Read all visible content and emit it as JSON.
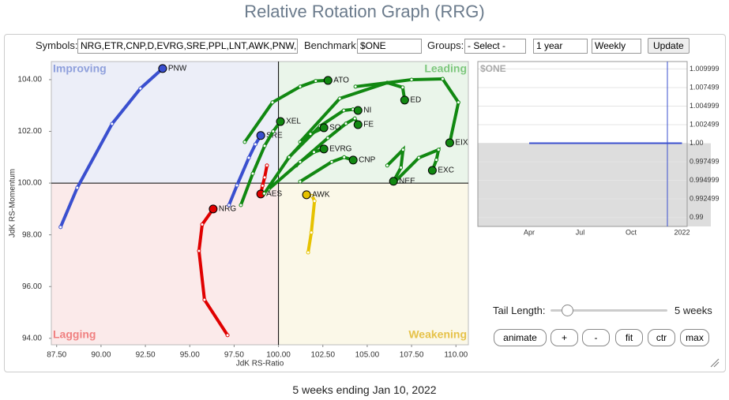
{
  "header": {
    "title": "Relative Rotation Graph (RRG)"
  },
  "controls": {
    "symbols_label": "Symbols:",
    "symbols": "NRG,ETR,CNP,D,EVRG,SRE,PPL,LNT,AWK,PNW,",
    "benchmark_label": "Benchmark:",
    "benchmark": "$ONE",
    "groups_label": "Groups:",
    "groups": "- Select -",
    "period": "1 year",
    "frequency": "Weekly",
    "update": "Update",
    "tail_label": "Tail Length:",
    "tail_value": "5 weeks",
    "buttons": [
      "animate",
      "+",
      "-",
      "fit",
      "ctr",
      "max"
    ]
  },
  "chart_data": [
    {
      "type": "rrg",
      "x_label": "JdK RS-Ratio",
      "y_label": "JdK RS-Momentum",
      "quadrants": {
        "improving": "Improving",
        "leading": "Leading",
        "lagging": "Lagging",
        "weakening": "Weakening"
      },
      "center": [
        100,
        100
      ],
      "xlim": [
        87.2,
        110.7
      ],
      "ylim": [
        93.75,
        104.7
      ],
      "xticks": [
        {
          "value": 87.5,
          "label": "87.50"
        },
        {
          "value": 90,
          "label": "90.00"
        },
        {
          "value": 92.5,
          "label": "92.50"
        },
        {
          "value": 95,
          "label": "95.00"
        },
        {
          "value": 97.5,
          "label": "97.50"
        },
        {
          "value": 100,
          "label": "100.00"
        },
        {
          "value": 102.5,
          "label": "102.50"
        },
        {
          "value": 105,
          "label": "105.00"
        },
        {
          "value": 107.5,
          "label": "107.50"
        },
        {
          "value": 110,
          "label": "110.00"
        }
      ],
      "yticks": [
        {
          "value": 94,
          "label": "94.00"
        },
        {
          "value": 96,
          "label": "96.00"
        },
        {
          "value": 98,
          "label": "98.00"
        },
        {
          "value": 100,
          "label": "100.00"
        },
        {
          "value": 102,
          "label": "102.00"
        },
        {
          "value": 104,
          "label": "104.00"
        }
      ],
      "series": [
        {
          "name": "PNW",
          "color": "#3a4fcf",
          "x": [
            87.72,
            88.66,
            90.62,
            92.22,
            93.47
          ],
          "values": [
            98.3,
            99.82,
            102.29,
            103.66,
            104.43
          ]
        },
        {
          "name": "NRG",
          "color": "#e00000",
          "x": [
            97.13,
            95.83,
            95.52,
            95.7,
            96.32
          ],
          "values": [
            94.12,
            95.49,
            97.38,
            98.4,
            99.0
          ]
        },
        {
          "name": "AWK",
          "color": "#e6c200",
          "x": [
            101.67,
            101.85,
            102.03,
            101.9,
            101.58
          ],
          "values": [
            97.32,
            98.09,
            99.31,
            99.5,
            99.55
          ]
        },
        {
          "name": "AES",
          "color": "#e00000",
          "x": [
            99.35,
            99.22,
            99.1,
            99.0
          ],
          "values": [
            100.68,
            100.22,
            99.9,
            99.58
          ]
        },
        {
          "name": "SRE",
          "color": "#3a4fcf",
          "x": [
            97.21,
            97.66,
            98.33,
            98.7,
            99.0
          ],
          "values": [
            99.15,
            99.91,
            100.98,
            101.5,
            101.84
          ]
        },
        {
          "name": "XEL",
          "color": "#118811",
          "x": [
            97.88,
            98.55,
            99.22,
            99.7,
            100.11
          ],
          "values": [
            99.15,
            100.37,
            101.44,
            102.0,
            102.38
          ]
        },
        {
          "name": "ATO",
          "color": "#118811",
          "x": [
            98.1,
            99.66,
            101.22,
            102.1,
            102.79
          ],
          "values": [
            101.59,
            103.12,
            103.73,
            103.95,
            103.97
          ]
        },
        {
          "name": "ED",
          "color": "#118811",
          "x": [
            101.22,
            103.45,
            106.13,
            107.0,
            107.11
          ],
          "values": [
            101.59,
            103.27,
            103.88,
            103.7,
            103.21
          ]
        },
        {
          "name": "NI",
          "color": "#118811",
          "x": [
            100.56,
            102.34,
            103.68,
            104.2,
            104.48
          ],
          "values": [
            100.98,
            102.2,
            102.81,
            102.85,
            102.81
          ]
        },
        {
          "name": "FE",
          "color": "#118811",
          "x": [
            101.0,
            102.78,
            103.8,
            104.3,
            104.48
          ],
          "values": [
            100.68,
            101.74,
            102.3,
            102.5,
            102.26
          ]
        },
        {
          "name": "EIX",
          "color": "#118811",
          "x": [
            104.34,
            107.5,
            109.25,
            110.14,
            109.65
          ],
          "values": [
            103.73,
            104.0,
            104.03,
            103.12,
            101.56
          ]
        },
        {
          "name": "EXC",
          "color": "#118811",
          "x": [
            106.57,
            107.91,
            109.02,
            108.9,
            108.67
          ],
          "values": [
            100.06,
            100.98,
            101.29,
            100.9,
            100.49
          ]
        },
        {
          "name": "NEE",
          "color": "#118811",
          "x": [
            106.13,
            107.02,
            106.9,
            106.48
          ],
          "values": [
            100.68,
            101.29,
            100.6,
            100.07
          ]
        },
        {
          "name": "CNP",
          "color": "#118811",
          "x": [
            101.22,
            103.0,
            103.7,
            104.21
          ],
          "values": [
            100.06,
            100.82,
            101.0,
            100.89
          ]
        },
        {
          "name": "EVRG",
          "color": "#118811",
          "x": [
            99.44,
            101.22,
            102.0,
            102.56
          ],
          "values": [
            99.76,
            100.82,
            101.2,
            101.32
          ]
        },
        {
          "name": "SO",
          "color": "#118811",
          "x": [
            99.2,
            100.6,
            101.8,
            102.56
          ],
          "values": [
            99.6,
            101.0,
            101.9,
            102.14
          ]
        }
      ]
    },
    {
      "type": "line",
      "title": "$ONE",
      "categories": [
        "Apr",
        "Jul",
        "Oct",
        "2022"
      ],
      "ylim": [
        0.9888,
        1.011
      ],
      "yticks": [
        1.009999,
        1.007499,
        1.004999,
        1.002499,
        {
          "value": 1,
          "label": "1.00"
        },
        0.997499,
        0.994999,
        0.992499,
        0.99
      ],
      "series": [
        {
          "color": "#3a4fcf",
          "values": [
            1,
            1,
            1,
            1
          ]
        }
      ]
    }
  ],
  "footer": "5 weeks ending Jan 10, 2022"
}
